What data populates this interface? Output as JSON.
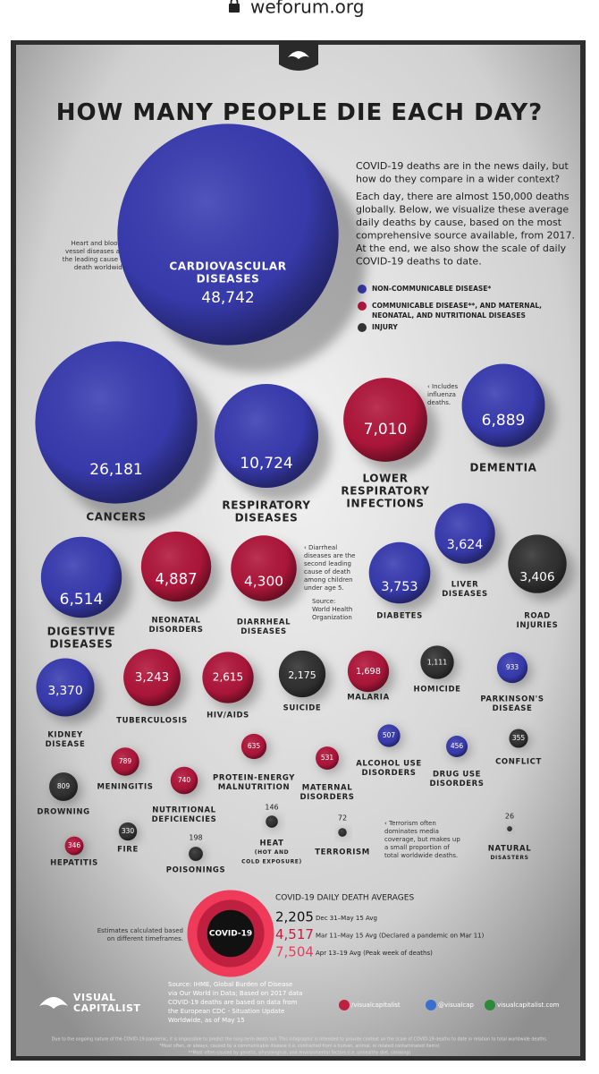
{
  "browser": {
    "url": "weforum.org"
  },
  "title": {
    "before": "HOW MANY PEOPLE",
    "emphasis": "DIE",
    "after": "EACH DAY?"
  },
  "intro": {
    "paragraphs": [
      [
        "COVID-19 deaths are in the news daily, but",
        "how do they compare in a wider context?"
      ],
      [
        "Each day, there are almost 150,000 deaths",
        "globally. Below, we visualize these average",
        "daily deaths by cause, based on the most",
        "comprehensive source available, from 2017.",
        "At the end, we also show the scale of daily",
        "COVID-19 deaths to date."
      ]
    ]
  },
  "legend": [
    {
      "label": [
        "NON-COMMUNICABLE DISEASE*"
      ],
      "color": "#3a3db3"
    },
    {
      "label": [
        "COMMUNICABLE DISEASE**, AND MATERNAL,",
        "NEONATAL, AND NUTRITIONAL DISEASES"
      ],
      "color": "#b3173c"
    },
    {
      "label": [
        "INJURY"
      ],
      "color": "#333333"
    }
  ],
  "annotations": [
    [
      "Heart and blood ›",
      "vessel diseases are",
      "the leading cause of",
      "death worldwide"
    ],
    [
      "‹ Includes",
      "influenza",
      "deaths."
    ],
    [
      "‹ Diarrheal",
      "diseases are the",
      "second leading",
      "cause of death",
      "among children",
      "under age 5."
    ],
    [
      "Source:",
      "World Health",
      "Organization"
    ],
    [
      "‹ Terrorism often",
      "dominates media",
      "coverage, but makes up",
      "a small proportion of",
      "total worldwide deaths."
    ]
  ],
  "bubbles": [
    {
      "label": [
        "CARDIOVASCULAR",
        "DISEASES"
      ],
      "value": 48742,
      "value_label": "48,742",
      "color": "#3a3db3"
    },
    {
      "label": [
        "CANCERS"
      ],
      "value": 26181,
      "value_label": "26,181",
      "color": "#3a3db3"
    },
    {
      "label": [
        "RESPIRATORY",
        "DISEASES"
      ],
      "value": 10724,
      "value_label": "10,724",
      "color": "#3a3db3"
    },
    {
      "label": [
        "LOWER",
        "RESPIRATORY",
        "INFECTIONS"
      ],
      "value": 7010,
      "value_label": "7,010",
      "color": "#b3173c"
    },
    {
      "label": [
        "DEMENTIA"
      ],
      "value": 6889,
      "value_label": "6,889",
      "color": "#3a3db3"
    },
    {
      "label": [
        "DIGESTIVE",
        "DISEASES"
      ],
      "value": 6514,
      "value_label": "6,514",
      "color": "#3a3db3"
    },
    {
      "label": [
        "NEONATAL",
        "DISORDERS"
      ],
      "value": 4887,
      "value_label": "4,887",
      "color": "#b3173c"
    },
    {
      "label": [
        "DIARRHEAL",
        "DISEASES"
      ],
      "value": 4300,
      "value_label": "4,300",
      "color": "#b3173c"
    },
    {
      "label": [
        "DIABETES"
      ],
      "value": 3753,
      "value_label": "3,753",
      "color": "#3a3db3"
    },
    {
      "label": [
        "LIVER",
        "DISEASES"
      ],
      "value": 3624,
      "value_label": "3,624",
      "color": "#3a3db3"
    },
    {
      "label": [
        "ROAD",
        "INJURIES"
      ],
      "value": 3406,
      "value_label": "3,406",
      "color": "#333333"
    },
    {
      "label": [
        "KIDNEY",
        "DISEASE"
      ],
      "value": 3370,
      "value_label": "3,370",
      "color": "#3a3db3"
    },
    {
      "label": [
        "TUBERCULOSIS"
      ],
      "value": 3243,
      "value_label": "3,243",
      "color": "#b3173c"
    },
    {
      "label": [
        "HIV/AIDS"
      ],
      "value": 2615,
      "value_label": "2,615",
      "color": "#b3173c"
    },
    {
      "label": [
        "SUICIDE"
      ],
      "value": 2175,
      "value_label": "2,175",
      "color": "#333333"
    },
    {
      "label": [
        "MALARIA"
      ],
      "value": 1698,
      "value_label": "1,698",
      "color": "#b3173c"
    },
    {
      "label": [
        "HOMICIDE"
      ],
      "value": 1111,
      "value_label": "1,111",
      "color": "#333333"
    },
    {
      "label": [
        "PARKINSON'S",
        "DISEASE"
      ],
      "value": 933,
      "value_label": "933",
      "color": "#3a3db3"
    },
    {
      "label": [
        "ALCOHOL USE",
        "DISORDERS"
      ],
      "value": 507,
      "value_label": "507",
      "color": "#3a3db3"
    },
    {
      "label": [
        "DRUG USE",
        "DISORDERS"
      ],
      "value": 456,
      "value_label": "456",
      "color": "#3a3db3"
    },
    {
      "label": [
        "CONFLICT"
      ],
      "value": 355,
      "value_label": "355",
      "color": "#333333"
    },
    {
      "label": [
        "MENINGITIS"
      ],
      "value": 789,
      "value_label": "789",
      "color": "#b3173c"
    },
    {
      "label": [
        "PROTEIN-ENERGY",
        "MALNUTRITION"
      ],
      "value": 635,
      "value_label": "635",
      "color": "#b3173c"
    },
    {
      "label": [
        "MATERNAL",
        "DISORDERS"
      ],
      "value": 531,
      "value_label": "531",
      "color": "#b3173c"
    },
    {
      "label": [
        "DROWNING"
      ],
      "value": 809,
      "value_label": "809",
      "color": "#333333"
    },
    {
      "label": [
        "NUTRITIONAL",
        "DEFICIENCIES"
      ],
      "value": 740,
      "value_label": "740",
      "color": "#b3173c"
    },
    {
      "label": [
        "HEAT",
        "(HOT AND",
        "COLD EXPOSURE)"
      ],
      "value": 146,
      "value_label": "146",
      "color": "#333333"
    },
    {
      "label": [
        "TERRORISM"
      ],
      "value": 72,
      "value_label": "72",
      "color": "#333333"
    },
    {
      "label": [
        "NATURAL",
        "DISASTERS"
      ],
      "value": 26,
      "value_label": "26",
      "color": "#333333"
    },
    {
      "label": [
        "HEPATITIS"
      ],
      "value": 346,
      "value_label": "346",
      "color": "#b3173c"
    },
    {
      "label": [
        "FIRE"
      ],
      "value": 330,
      "value_label": "330",
      "color": "#333333"
    },
    {
      "label": [
        "POISONINGS"
      ],
      "value": 198,
      "value_label": "198",
      "color": "#333333"
    }
  ],
  "covid": {
    "title": "COVID-19 DAILY DEATH AVERAGES",
    "label": "COVID-19",
    "note": [
      "Estimates calculated based",
      "on different timeframes."
    ],
    "rows": [
      {
        "value": 2205,
        "value_label": "2,205",
        "period": "Dec 31–May 15 Avg",
        "color": "#111111"
      },
      {
        "value": 4517,
        "value_label": "4,517",
        "period": "Mar 11–May 15 Avg (Declared a pandemic on Mar 11)",
        "color": "#c0203f"
      },
      {
        "value": 7504,
        "value_label": "7,504",
        "period": "Apr 13–19 Avg (Peak week of deaths)",
        "color": "#f03a5a"
      }
    ]
  },
  "footer": {
    "brand": [
      "VISUAL",
      "CAPITALIST"
    ],
    "sources": [
      "Source: IHME, Global Burden of Disease",
      "via Our World in Data; Based on 2017 data",
      "COVID-19 deaths are based on data from",
      "the European CDC - Situation Update",
      "Worldwide, as of May 15"
    ],
    "social": [
      "/visualcapitalist",
      "@visualcap",
      "visualcapitalist.com"
    ],
    "fine_print": [
      "Due to the ongoing nature of the COVID-19 pandemic, it is impossible to predict the long-term death toll. This infographic is intended to provide context on the scale of COVID-19 deaths to date in relation to total worldwide deaths.",
      "*Most often, or always, caused by a communicable disease (i.e. contracted from a human, animal, or related contaminated items)",
      "**Most often caused by genetic, physiological, and environmental factors (i.e. unhealthy diet, smoking)"
    ]
  }
}
